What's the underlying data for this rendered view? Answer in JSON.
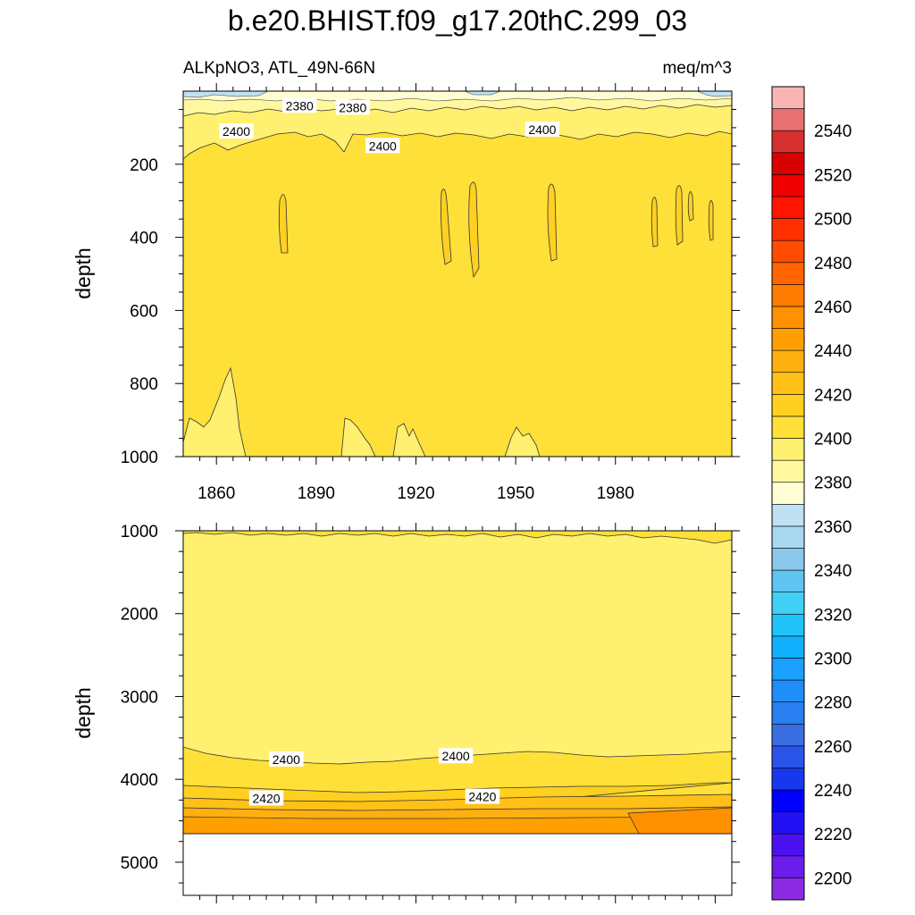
{
  "title": "b.e20.BHIST.f09_g17.20thC.299_03",
  "subtitle_left": "ALKpNO3, ATL_49N-66N",
  "subtitle_right": "meq/m^3",
  "chart_data": [
    {
      "type": "heatmap",
      "panel": "upper",
      "ylabel": "depth",
      "xlim": [
        1850,
        2015
      ],
      "ylim": [
        0,
        1000
      ],
      "y_reversed": true,
      "x_ticks": [
        1860,
        1890,
        1920,
        1950,
        1980
      ],
      "x_tick_labels": [
        "1860",
        "1890",
        "1920",
        "1950",
        "1980"
      ],
      "y_ticks": [
        200,
        400,
        600,
        800,
        1000
      ],
      "y_tick_labels": [
        "200",
        "400",
        "600",
        "800",
        "1000"
      ],
      "contour_labels": [
        {
          "text": "2380",
          "x": 1885,
          "y": 40
        },
        {
          "text": "2380",
          "x": 1901,
          "y": 45
        },
        {
          "text": "2400",
          "x": 1866,
          "y": 110
        },
        {
          "text": "2400",
          "x": 1910,
          "y": 150
        },
        {
          "text": "2400",
          "x": 1958,
          "y": 105
        }
      ],
      "dominant_value_range": [
        2400,
        2410
      ]
    },
    {
      "type": "heatmap",
      "panel": "lower",
      "ylabel": "depth",
      "xlim": [
        1850,
        2015
      ],
      "ylim": [
        1000,
        5400
      ],
      "y_reversed": true,
      "y_ticks": [
        1000,
        2000,
        3000,
        4000,
        5000
      ],
      "y_tick_labels": [
        "1000",
        "2000",
        "3000",
        "4000",
        "5000"
      ],
      "data_bottom_depth": 4600,
      "contour_labels": [
        {
          "text": "2400",
          "x": 1881,
          "y": 3760
        },
        {
          "text": "2400",
          "x": 1932,
          "y": 3720
        },
        {
          "text": "2420",
          "x": 1875,
          "y": 4230
        },
        {
          "text": "2420",
          "x": 1940,
          "y": 4210
        }
      ],
      "dominant_value_range": [
        2390,
        2400
      ]
    }
  ],
  "colorbar": {
    "min": 2190,
    "max": 2560,
    "step": 10,
    "tick_values": [
      2200,
      2220,
      2240,
      2260,
      2280,
      2300,
      2320,
      2340,
      2360,
      2380,
      2400,
      2420,
      2440,
      2460,
      2480,
      2500,
      2520,
      2540
    ],
    "tick_labels": [
      "2200",
      "2220",
      "2240",
      "2260",
      "2280",
      "2300",
      "2320",
      "2340",
      "2360",
      "2380",
      "2400",
      "2420",
      "2440",
      "2460",
      "2480",
      "2500",
      "2520",
      "2540"
    ],
    "colors": [
      "#8a2be2",
      "#6a1de8",
      "#4a10f0",
      "#2210f5",
      "#0000ff",
      "#1838f0",
      "#2a55e8",
      "#3a6ee0",
      "#2a7ef0",
      "#1e8ef8",
      "#1aa0ff",
      "#10b0ff",
      "#20c4f8",
      "#40d0f6",
      "#60c4f0",
      "#8cc8ec",
      "#a8d8f0",
      "#bee2f4",
      "#fffed2",
      "#fff8a0",
      "#fff070",
      "#ffe038",
      "#ffd020",
      "#ffc018",
      "#ffb010",
      "#ffa000",
      "#ff9000",
      "#ff7a00",
      "#ff6400",
      "#ff4c00",
      "#ff3000",
      "#ff1400",
      "#f00000",
      "#d80000",
      "#d83030",
      "#e87070",
      "#fbb4b4"
    ]
  }
}
